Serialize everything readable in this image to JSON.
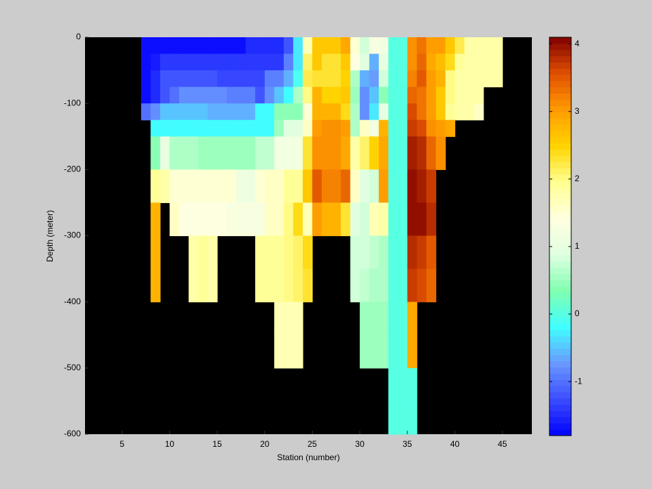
{
  "chart_data": {
    "type": "heatmap",
    "xlabel": "Station (number)",
    "ylabel": "Depth (meter)",
    "xlim": [
      1.1,
      48.1
    ],
    "ylim": [
      -600,
      0
    ],
    "xticks": [
      5,
      10,
      15,
      20,
      25,
      30,
      35,
      40,
      45
    ],
    "yticks": [
      0,
      -100,
      -200,
      -300,
      -400,
      -500,
      -600
    ],
    "clim": [
      -1.8,
      4.1
    ],
    "cticks": [
      -1,
      0,
      1,
      2,
      3,
      4
    ],
    "colormap": [
      "#0000ff",
      "#3a4cff",
      "#6a98ff",
      "#40ffff",
      "#80ffb0",
      "#e0ffe0",
      "#ffffe0",
      "#ffff90",
      "#ffd400",
      "#ff9a00",
      "#e05000",
      "#800000"
    ],
    "background": "#000000",
    "x_edges": [
      7,
      8,
      9,
      10,
      11,
      12,
      13,
      14,
      15,
      16,
      17,
      18,
      19,
      20,
      21,
      22,
      23,
      24,
      25,
      26,
      27,
      28,
      29,
      30,
      31,
      32,
      33,
      34,
      35,
      36,
      37,
      38,
      39,
      40,
      41,
      42,
      43,
      44,
      45
    ],
    "y_edges": [
      0,
      -25,
      -50,
      -75,
      -100,
      -125,
      -150,
      -200,
      -250,
      -300,
      -350,
      -400,
      -450,
      -500,
      -550,
      -600
    ],
    "z": [
      [
        -1.7,
        -1.7,
        -1.7,
        -1.7,
        -1.7,
        -1.7,
        -1.7,
        -1.7,
        -1.7,
        -1.7,
        -1.7,
        -1.5,
        -1.5,
        -1.5,
        -1.5,
        -1.2,
        -0.3,
        1.7,
        2.6,
        2.6,
        2.6,
        2.9,
        1.5,
        0.8,
        1.3,
        1.2,
        0,
        0,
        3.1,
        3.3,
        3.0,
        3.0,
        2.6,
        2.2,
        1.8,
        1.8,
        1.8,
        1.8
      ],
      [
        -1.7,
        -1.6,
        -1.4,
        -1.4,
        -1.4,
        -1.4,
        -1.4,
        -1.4,
        -1.4,
        -1.4,
        -1.4,
        -1.4,
        -1.4,
        -1.4,
        -1.4,
        -0.9,
        -0.3,
        2.1,
        2.6,
        2.3,
        2.3,
        2.6,
        1.4,
        0.9,
        -0.6,
        1.0,
        0,
        0,
        3.1,
        3.4,
        2.9,
        2.7,
        2.4,
        1.9,
        1.8,
        1.8,
        1.8,
        1.8
      ],
      [
        -1.7,
        -1.5,
        -1.2,
        -1.2,
        -1.2,
        -1.2,
        -1.2,
        -1.2,
        -1.3,
        -1.3,
        -1.3,
        -1.3,
        -1.3,
        -0.9,
        -0.9,
        -0.6,
        -0.1,
        2.2,
        2.3,
        2.3,
        2.3,
        2.5,
        0.6,
        -0.6,
        -0.7,
        0.8,
        0,
        0,
        3.2,
        3.5,
        3.0,
        2.8,
        2.0,
        1.8,
        1.8,
        1.8,
        1.8,
        1.8
      ],
      [
        -1.7,
        -1.5,
        -1.2,
        -1.0,
        -0.8,
        -0.8,
        -0.8,
        -0.8,
        -0.8,
        -0.9,
        -0.9,
        -0.9,
        -1.2,
        -0.8,
        -0.5,
        -0.2,
        0.6,
        2.0,
        2.8,
        2.5,
        2.5,
        2.6,
        0.5,
        -0.8,
        -0.5,
        0.4,
        0,
        0,
        3.4,
        3.3,
        3.0,
        2.6,
        2.0,
        1.8,
        1.8,
        1.8,
        null,
        null
      ],
      [
        -1.0,
        -0.8,
        -0.5,
        -0.5,
        -0.5,
        -0.5,
        -0.5,
        -0.6,
        -0.6,
        -0.6,
        -0.6,
        -0.6,
        -0.2,
        -0.2,
        0.4,
        0.4,
        0.4,
        1.5,
        2.8,
        2.8,
        2.8,
        2.4,
        0.6,
        -0.8,
        -0.3,
        1.0,
        0,
        0,
        3.6,
        3.3,
        3.0,
        2.6,
        1.9,
        1.8,
        1.8,
        1.6,
        null,
        null
      ],
      [
        null,
        -0.2,
        -0.2,
        -0.2,
        -0.2,
        -0.2,
        -0.2,
        -0.2,
        -0.2,
        -0.2,
        -0.2,
        -0.2,
        -0.2,
        -0.2,
        0.5,
        0.9,
        0.9,
        1.6,
        3.0,
        3.1,
        3.1,
        3.0,
        0.6,
        1.6,
        1.2,
        2.8,
        0,
        0,
        3.7,
        3.6,
        3.1,
        3.0,
        2.9,
        null,
        null,
        null,
        null,
        null
      ],
      [
        null,
        0.4,
        1.0,
        0.6,
        0.6,
        0.6,
        0.5,
        0.5,
        0.5,
        0.5,
        0.5,
        0.5,
        0.7,
        0.7,
        1.2,
        1.2,
        1.2,
        2.3,
        3.1,
        3.1,
        3.1,
        2.9,
        1.8,
        2.1,
        2.5,
        2.9,
        0,
        0,
        3.9,
        3.8,
        3.4,
        3.1,
        null,
        null,
        null,
        null,
        null,
        null
      ],
      [
        null,
        1.9,
        1.8,
        1.5,
        1.5,
        1.5,
        1.5,
        1.5,
        1.5,
        1.5,
        1.1,
        1.1,
        1.5,
        1.6,
        1.6,
        1.9,
        1.9,
        2.6,
        3.5,
        3.2,
        3.2,
        3.4,
        1.6,
        0.9,
        0.8,
        3.0,
        0,
        0,
        4.0,
        3.9,
        3.7,
        null,
        null,
        null,
        null,
        null,
        null,
        null
      ],
      [
        null,
        2.8,
        null,
        1.6,
        1.4,
        1.4,
        1.4,
        1.4,
        1.4,
        1.3,
        1.3,
        1.3,
        1.3,
        1.6,
        1.6,
        2.0,
        2.4,
        1.7,
        3.0,
        2.8,
        2.8,
        2.3,
        0.9,
        0.8,
        1.7,
        1.8,
        0,
        0,
        4.0,
        4.0,
        3.8,
        null,
        null,
        null,
        null,
        null,
        null,
        null
      ],
      [
        null,
        2.8,
        null,
        null,
        null,
        1.8,
        1.9,
        1.8,
        null,
        null,
        null,
        null,
        1.9,
        1.9,
        1.9,
        2.0,
        2.1,
        2.4,
        null,
        null,
        null,
        null,
        0.8,
        0.8,
        0.7,
        0.6,
        0,
        0,
        3.8,
        3.7,
        3.5,
        null,
        null,
        null,
        null,
        null,
        null,
        null
      ],
      [
        null,
        2.8,
        null,
        null,
        null,
        1.8,
        1.9,
        1.8,
        null,
        null,
        null,
        null,
        1.9,
        1.9,
        1.9,
        2.0,
        2.1,
        2.3,
        null,
        null,
        null,
        null,
        0.8,
        0.7,
        0.6,
        0.6,
        0,
        0,
        3.7,
        3.6,
        3.4,
        null,
        null,
        null,
        null,
        null,
        null,
        null
      ],
      [
        null,
        null,
        null,
        null,
        null,
        null,
        null,
        null,
        null,
        null,
        null,
        null,
        null,
        null,
        1.7,
        1.7,
        1.7,
        null,
        null,
        null,
        null,
        null,
        null,
        0.5,
        0.5,
        0.5,
        0,
        0,
        2.9,
        null,
        null,
        null,
        null,
        null,
        null,
        null,
        null,
        null
      ],
      [
        null,
        null,
        null,
        null,
        null,
        null,
        null,
        null,
        null,
        null,
        null,
        null,
        null,
        null,
        1.7,
        1.7,
        1.7,
        null,
        null,
        null,
        null,
        null,
        null,
        0.5,
        0.5,
        0.5,
        0,
        0,
        2.9,
        null,
        null,
        null,
        null,
        null,
        null,
        null,
        null,
        null
      ],
      [
        null,
        null,
        null,
        null,
        null,
        null,
        null,
        null,
        null,
        null,
        null,
        null,
        null,
        null,
        null,
        null,
        null,
        null,
        null,
        null,
        null,
        null,
        null,
        null,
        null,
        null,
        0,
        0,
        0,
        null,
        null,
        null,
        null,
        null,
        null,
        null,
        null,
        null
      ],
      [
        null,
        null,
        null,
        null,
        null,
        null,
        null,
        null,
        null,
        null,
        null,
        null,
        null,
        null,
        null,
        null,
        null,
        null,
        null,
        null,
        null,
        null,
        null,
        null,
        null,
        null,
        0,
        0,
        0,
        null,
        null,
        null,
        null,
        null,
        null,
        null,
        null,
        null
      ]
    ]
  }
}
